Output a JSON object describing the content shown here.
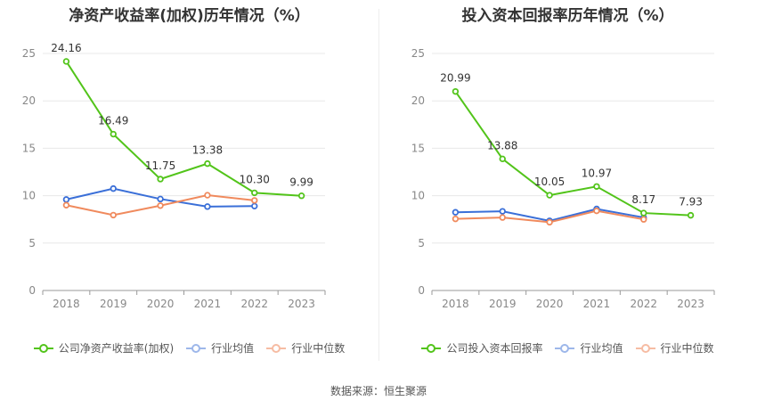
{
  "source": "数据来源：恒生聚源",
  "chart_data": [
    {
      "type": "line",
      "title": "净资产收益率(加权)历年情况（%）",
      "categories": [
        "2018",
        "2019",
        "2020",
        "2021",
        "2022",
        "2023"
      ],
      "ylim": [
        0,
        25
      ],
      "yticks": [
        0,
        5,
        10,
        15,
        20,
        25
      ],
      "grid": true,
      "legend_position": "bottom",
      "series": [
        {
          "name": "公司净资产收益率(加权)",
          "color": "#52c41a",
          "values": [
            24.16,
            16.49,
            11.75,
            13.38,
            10.3,
            9.99
          ],
          "labels": [
            "24.16",
            "16.49",
            "11.75",
            "13.38",
            "10.30",
            "9.99"
          ]
        },
        {
          "name": "行业均值",
          "color": "#3a6fd8",
          "values": [
            9.6,
            10.75,
            9.65,
            8.85,
            8.9,
            null
          ]
        },
        {
          "name": "行业中位数",
          "color": "#f08a5d",
          "values": [
            9.0,
            7.95,
            8.95,
            10.05,
            9.5,
            null
          ]
        }
      ]
    },
    {
      "type": "line",
      "title": "投入资本回报率历年情况（%）",
      "categories": [
        "2018",
        "2019",
        "2020",
        "2021",
        "2022",
        "2023"
      ],
      "ylim": [
        0,
        25
      ],
      "yticks": [
        0,
        5,
        10,
        15,
        20,
        25
      ],
      "grid": true,
      "legend_position": "bottom",
      "series": [
        {
          "name": "公司投入资本回报率",
          "color": "#52c41a",
          "values": [
            20.99,
            13.88,
            10.05,
            10.97,
            8.17,
            7.93
          ],
          "labels": [
            "20.99",
            "13.88",
            "10.05",
            "10.97",
            "8.17",
            "7.93"
          ]
        },
        {
          "name": "行业均值",
          "color": "#3a6fd8",
          "values": [
            8.25,
            8.35,
            7.35,
            8.6,
            7.7,
            null
          ]
        },
        {
          "name": "行业中位数",
          "color": "#f08a5d",
          "values": [
            7.55,
            7.7,
            7.2,
            8.4,
            7.5,
            null
          ]
        }
      ]
    }
  ]
}
